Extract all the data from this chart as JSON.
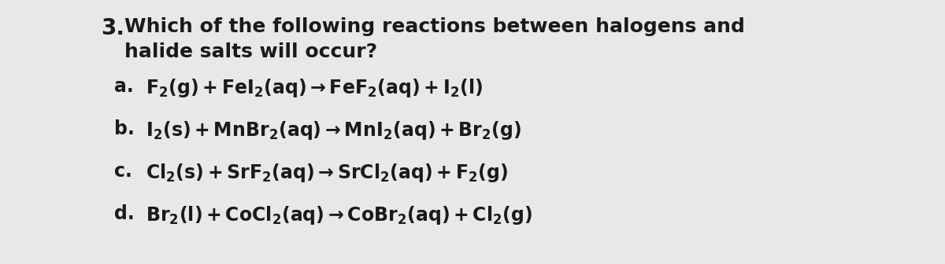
{
  "background_color": "#e8e8e8",
  "text_color": "#1a1a1a",
  "question_number": "3.",
  "question_text_line1": "Which of the following reactions between halogens and",
  "question_text_line2": "halide salts will occur?",
  "options": [
    {
      "label": "a.",
      "equation": "$\\mathbf{F_2(g) + FeI_2(aq) \\rightarrow FeF_2(aq) + I_2(l)}$"
    },
    {
      "label": "b.",
      "equation": "$\\mathbf{I_2(s) + MnBr_2(aq) \\rightarrow MnI_2(aq) + Br_2(g)}$"
    },
    {
      "label": "c.",
      "equation": "$\\mathbf{Cl_2(s) + SrF_2(aq) \\rightarrow SrCl_2(aq) + F_2(g)}$"
    },
    {
      "label": "d.",
      "equation": "$\\mathbf{Br_2(l) + CoCl_2(aq) \\rightarrow CoBr_2(aq) + Cl_2(g)}$"
    }
  ],
  "question_fontsize": 18,
  "option_fontsize": 17,
  "label_fontsize": 17,
  "number_fontsize": 20,
  "fig_width": 12.0,
  "fig_height": 3.36,
  "dpi": 100
}
